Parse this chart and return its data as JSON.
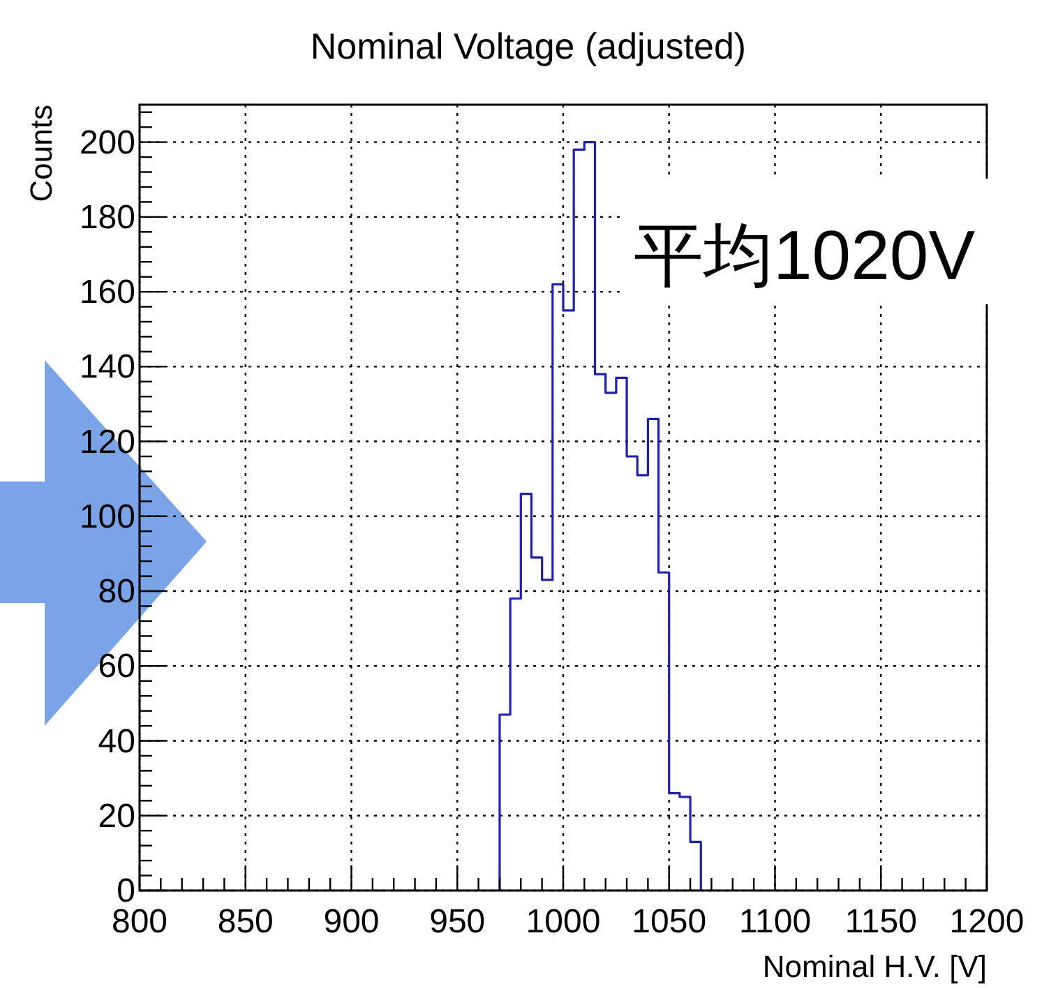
{
  "chart_data": {
    "type": "histogram",
    "title": "Nominal Voltage (adjusted)",
    "xlabel": "Nominal H.V. [V]",
    "ylabel": "Counts",
    "annotations": [
      "平均1020V"
    ],
    "bins": [
      970,
      975,
      980,
      985,
      990,
      995,
      1000,
      1005,
      1010,
      1015,
      1020,
      1025,
      1030,
      1035,
      1040,
      1045,
      1050,
      1055,
      1060,
      1065
    ],
    "values": [
      47,
      78,
      106,
      89,
      83,
      162,
      155,
      198,
      200,
      138,
      133,
      137,
      116,
      111,
      126,
      85,
      26,
      25,
      13
    ],
    "color": "#2020b0",
    "xlim": [
      800,
      1200
    ],
    "xticks": [
      800,
      850,
      900,
      950,
      1000,
      1050,
      1100,
      1150,
      1200
    ],
    "ylim": [
      0,
      210
    ],
    "yticks": [
      0,
      20,
      40,
      60,
      80,
      100,
      120,
      140,
      160,
      180,
      200
    ],
    "grid": true
  }
}
